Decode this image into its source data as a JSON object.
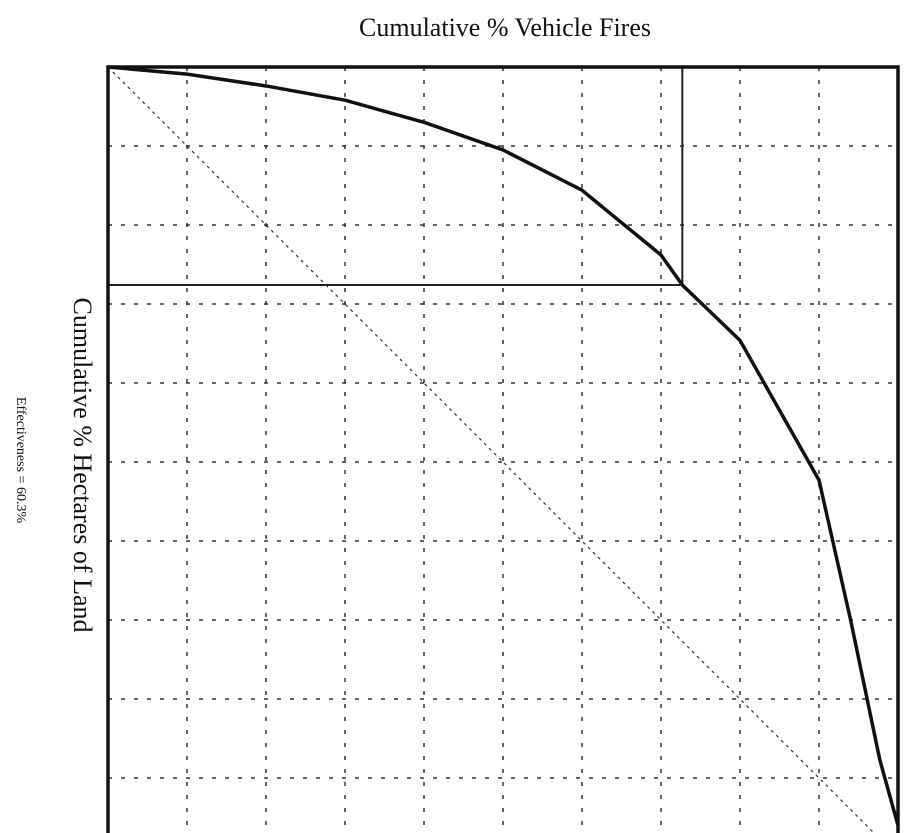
{
  "chart_data": {
    "type": "line",
    "title": "Cumulative % Vehicle Fires",
    "y_label": "Cumulative % Hectares of Land",
    "annotation": "Effectiveness = 60.3%",
    "x": [
      0,
      10,
      20,
      30,
      40,
      50,
      60,
      70,
      72.7,
      80,
      90,
      94,
      97.7,
      100
    ],
    "series": [
      {
        "color": "#111111",
        "values": [
          0,
          0.9,
          2.4,
          4.2,
          7.0,
          10.5,
          15.6,
          23.8,
          27.6,
          34.6,
          52.3,
          70,
          87.7,
          96
        ]
      }
    ],
    "diagonal": {
      "x": [
        0,
        100
      ],
      "values": [
        0,
        100
      ]
    },
    "marker_point": {
      "x": 72.7,
      "y": 27.6
    },
    "xlim": [
      0,
      100
    ],
    "ylim": [
      0,
      100
    ],
    "y_inverted": true,
    "xticks": [
      0,
      10,
      20,
      30,
      40,
      50,
      60,
      70,
      80,
      90,
      100
    ],
    "yticks": [
      0,
      10,
      20,
      30,
      40,
      50,
      60,
      70,
      80,
      90,
      100
    ],
    "grid": true
  }
}
